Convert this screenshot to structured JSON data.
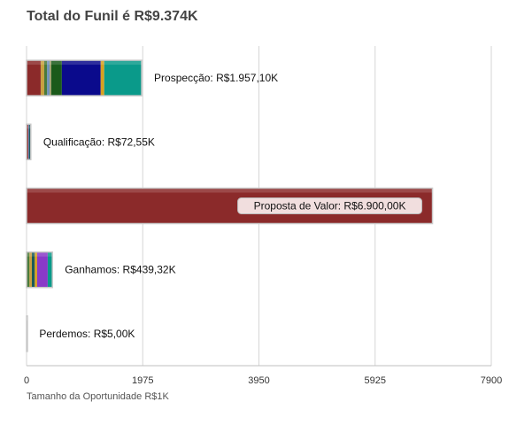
{
  "title": "Total do Funil é R$9.374K",
  "chart_data": {
    "type": "bar",
    "orientation": "horizontal",
    "stacked": true,
    "xlabel": "Tamanho da Oportunidade R$1K",
    "xlim": [
      0,
      7900
    ],
    "ticks": [
      "0",
      "1975",
      "3950",
      "5925",
      "7900"
    ],
    "grid": true,
    "categories": [
      {
        "name": "Prospecção",
        "label": "Prospecção: R$1.957,10K",
        "highlight": false,
        "segments": [
          {
            "value": 240,
            "color": "#8b2a2a"
          },
          {
            "value": 60,
            "color": "#c8a040"
          },
          {
            "value": 50,
            "color": "#4a7a3a"
          },
          {
            "value": 40,
            "color": "#6a8fbf"
          },
          {
            "value": 30,
            "color": "#a0a070"
          },
          {
            "value": 180,
            "color": "#1a5a1a"
          },
          {
            "value": 660,
            "color": "#0a0a8c"
          },
          {
            "value": 60,
            "color": "#d8a020"
          },
          {
            "value": 637.1,
            "color": "#0a9a8a"
          }
        ]
      },
      {
        "name": "Qualificação",
        "label": "Qualificação: R$72,55K",
        "highlight": false,
        "segments": [
          {
            "value": 30,
            "color": "#8b2a2a"
          },
          {
            "value": 15,
            "color": "#6a8fbf"
          },
          {
            "value": 27.55,
            "color": "#1a5a5a"
          }
        ]
      },
      {
        "name": "Proposta de Valor",
        "label": "Proposta de Valor: R$6.900,00K",
        "highlight": true,
        "segments": [
          {
            "value": 6900,
            "color": "#8b2a2a"
          }
        ]
      },
      {
        "name": "Ganhamos",
        "label": "Ganhamos: R$439,32K",
        "highlight": false,
        "segments": [
          {
            "value": 50,
            "color": "#4a7a3a"
          },
          {
            "value": 40,
            "color": "#c8a040"
          },
          {
            "value": 50,
            "color": "#1a5a5a"
          },
          {
            "value": 40,
            "color": "#d8a020"
          },
          {
            "value": 180,
            "color": "#8a3ac8"
          },
          {
            "value": 79.32,
            "color": "#0a9a8a"
          }
        ]
      },
      {
        "name": "Perdemos",
        "label": "Perdemos: R$5,00K",
        "highlight": false,
        "segments": [
          {
            "value": 5,
            "color": "#8b2a2a"
          }
        ]
      }
    ]
  }
}
